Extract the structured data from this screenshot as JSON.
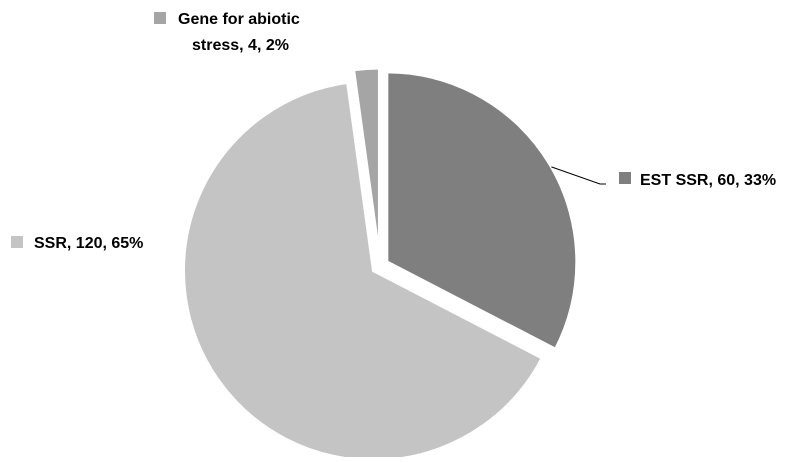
{
  "chart_data": {
    "type": "pie",
    "title": "",
    "exploded": true,
    "start_angle_deg": 0,
    "direction": "clockwise",
    "legend": "none",
    "slices": [
      {
        "label": "EST SSR, 60, 33%",
        "category": "EST SSR",
        "value": 60,
        "percent": 33,
        "color": "#7f7f7f"
      },
      {
        "label": "SSR, 120, 65%",
        "category": "SSR",
        "value": 120,
        "percent": 65,
        "color": "#c4c4c4"
      },
      {
        "label": "Gene for abiotic stress, 4, 2%",
        "category": "Gene for abiotic stress",
        "value": 4,
        "percent": 2,
        "color": "#a5a5a5"
      }
    ]
  }
}
